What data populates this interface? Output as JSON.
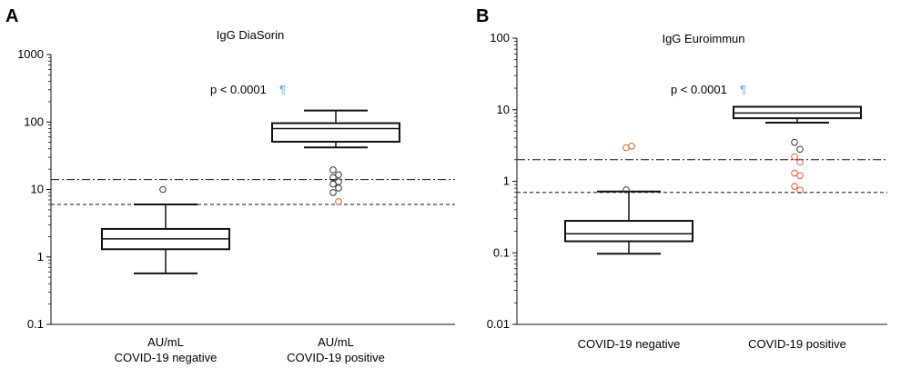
{
  "chart_data": [
    {
      "type": "box",
      "panel_label": "A",
      "title": "IgG DiaSorin",
      "yscale": "log",
      "ylim": [
        0.1,
        1000
      ],
      "yticks": [
        0.1,
        1,
        10,
        100,
        1000
      ],
      "ytick_labels": [
        "0.1",
        "1",
        "10",
        "100",
        "1000"
      ],
      "annotation": "p < 0.0001",
      "annotation_mark": "¶",
      "reference_lines": [
        {
          "style": "dash-dot",
          "y": 14
        },
        {
          "style": "dashed",
          "y": 6
        }
      ],
      "groups": [
        {
          "label_line1": "AU/mL",
          "label_line2": "COVID-19 negative",
          "whisker_low": 0.57,
          "q1": 1.3,
          "median": 1.85,
          "q3": 2.6,
          "whisker_high": 6.0,
          "outliers": [
            {
              "y": 10.0,
              "color": "#333333"
            }
          ]
        },
        {
          "label_line1": "AU/mL",
          "label_line2": "COVID-19 positive",
          "whisker_low": 42,
          "q1": 51,
          "median": 80,
          "q3": 96,
          "whisker_high": 148,
          "outliers": [
            {
              "y": 19.5,
              "color": "#333333"
            },
            {
              "y": 16.5,
              "color": "#333333"
            },
            {
              "y": 15.0,
              "color": "#333333"
            },
            {
              "y": 13.0,
              "color": "#333333"
            },
            {
              "y": 12.0,
              "color": "#333333"
            },
            {
              "y": 10.5,
              "color": "#333333"
            },
            {
              "y": 9.0,
              "color": "#333333"
            },
            {
              "y": 6.6,
              "color": "#e05a3a"
            }
          ]
        }
      ]
    },
    {
      "type": "box",
      "panel_label": "B",
      "title": "IgG Euroimmun",
      "yscale": "log",
      "ylim": [
        0.01,
        100
      ],
      "yticks": [
        0.01,
        0.1,
        1,
        10,
        100
      ],
      "ytick_labels": [
        "0.01",
        "0.1",
        "1",
        "10",
        "100"
      ],
      "annotation": "p < 0.0001",
      "annotation_mark": "¶",
      "reference_lines": [
        {
          "style": "dash-dot",
          "y": 2.0
        },
        {
          "style": "dashed",
          "y": 0.7
        }
      ],
      "groups": [
        {
          "label_line1": "",
          "label_line2": "COVID-19 negative",
          "whisker_low": 0.097,
          "q1": 0.145,
          "median": 0.185,
          "q3": 0.28,
          "whisker_high": 0.72,
          "outliers": [
            {
              "y": 0.76,
              "color": "#333333"
            },
            {
              "y": 3.1,
              "color": "#e05a3a"
            },
            {
              "y": 2.95,
              "color": "#e05a3a"
            }
          ]
        },
        {
          "label_line1": "",
          "label_line2": "COVID-19 positive",
          "whisker_low": 6.6,
          "q1": 7.6,
          "median": 9.0,
          "q3": 11.0,
          "whisker_high": 11.0,
          "outliers": [
            {
              "y": 3.5,
              "color": "#333333"
            },
            {
              "y": 2.8,
              "color": "#333333"
            },
            {
              "y": 2.2,
              "color": "#e05a3a"
            },
            {
              "y": 1.85,
              "color": "#e05a3a"
            },
            {
              "y": 1.3,
              "color": "#e05a3a"
            },
            {
              "y": 1.2,
              "color": "#e05a3a"
            },
            {
              "y": 0.85,
              "color": "#e05a3a"
            },
            {
              "y": 0.75,
              "color": "#e05a3a"
            }
          ]
        }
      ]
    }
  ]
}
